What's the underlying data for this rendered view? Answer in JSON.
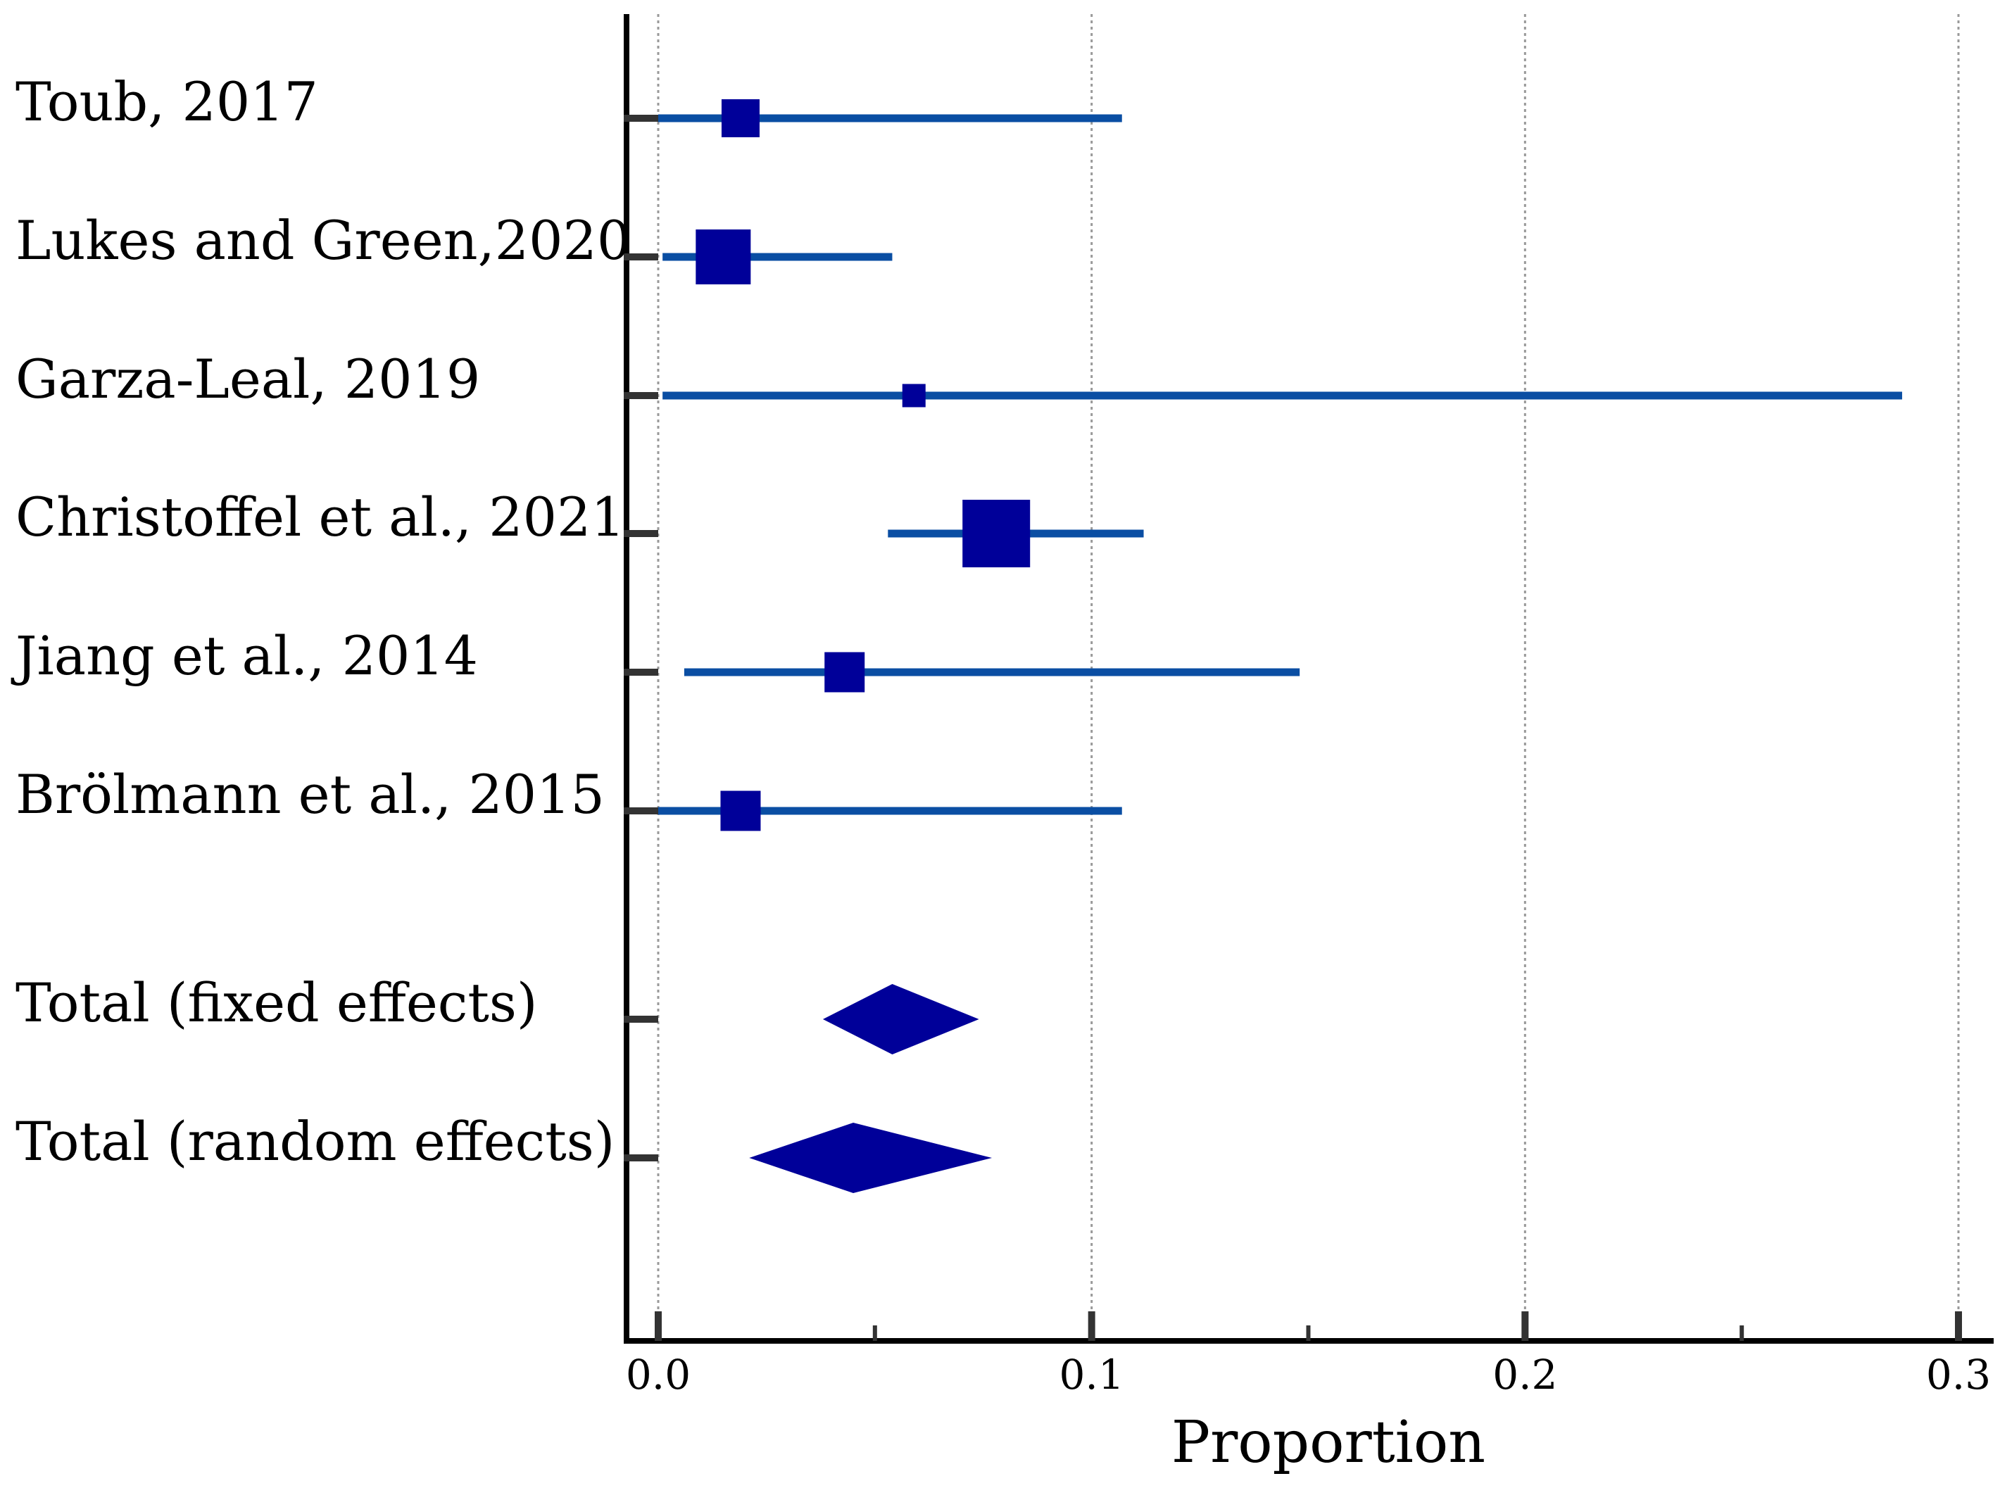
{
  "chart_data": {
    "type": "forest",
    "title": "",
    "xlabel": "Proportion",
    "ylabel": "",
    "xlim": [
      0.0,
      0.3
    ],
    "x_ticks": [
      "0.0",
      "0.1",
      "0.2",
      "0.3"
    ],
    "x_tick_values": [
      0.0,
      0.1,
      0.2,
      0.3
    ],
    "x_minor_tick_values": [
      0.05,
      0.15,
      0.25
    ],
    "grid": "vertical dotted at major ticks",
    "colors": {
      "marker": "#000099",
      "ci_line": "#0a4ea3",
      "axis": "#000000",
      "grid": "#999999"
    },
    "studies": [
      {
        "label": "Toub, 2017",
        "estimate": 0.019,
        "ci_low": 0.0,
        "ci_high": 0.107,
        "weight": 0.9
      },
      {
        "label": "Lukes and Green,2020",
        "estimate": 0.015,
        "ci_low": 0.001,
        "ci_high": 0.054,
        "weight": 1.3
      },
      {
        "label": "Garza-Leal, 2019",
        "estimate": 0.059,
        "ci_low": 0.001,
        "ci_high": 0.287,
        "weight": 0.55
      },
      {
        "label": "Christoffel et al., 2021",
        "estimate": 0.078,
        "ci_low": 0.053,
        "ci_high": 0.112,
        "weight": 1.6
      },
      {
        "label": "Jiang et al., 2014",
        "estimate": 0.043,
        "ci_low": 0.006,
        "ci_high": 0.148,
        "weight": 0.95
      },
      {
        "label": "Brölmann et al., 2015",
        "estimate": 0.019,
        "ci_low": 0.0,
        "ci_high": 0.107,
        "weight": 0.95
      }
    ],
    "totals": [
      {
        "label": "Total (fixed effects)",
        "estimate": 0.054,
        "ci_low": 0.038,
        "ci_high": 0.074
      },
      {
        "label": "Total (random effects)",
        "estimate": 0.045,
        "ci_low": 0.021,
        "ci_high": 0.077
      }
    ]
  }
}
